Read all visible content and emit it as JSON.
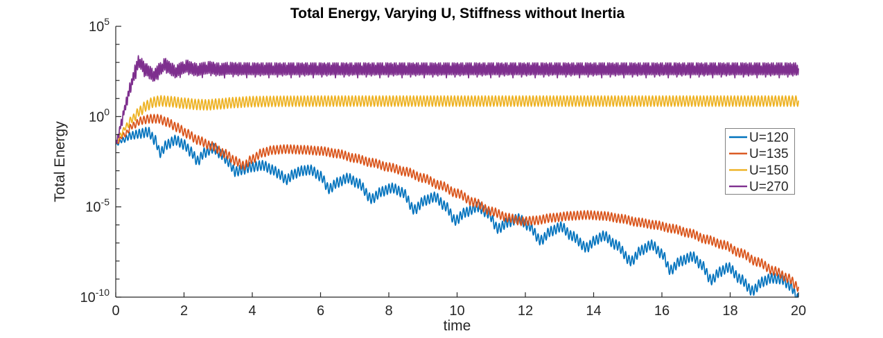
{
  "chart_data": {
    "type": "line",
    "title": "Total Energy, Varying U, Stiffness without Inertia",
    "xlabel": "time",
    "ylabel": "Total Energy",
    "x_range": [
      0,
      20
    ],
    "x_ticks": [
      0,
      2,
      4,
      6,
      8,
      10,
      12,
      14,
      16,
      18,
      20
    ],
    "y_scale": "log10",
    "y_range_exponents": [
      -10,
      5
    ],
    "y_labeled_exponents": [
      5,
      0,
      -5,
      -10
    ],
    "y_minor_ticks_every_decade": true,
    "grid": false,
    "legend_position": "right-middle",
    "colors": {
      "axis": "#262626",
      "text": "#262626",
      "title": "#000000",
      "legend_border": "#808080",
      "background": "#ffffff"
    },
    "series": [
      {
        "name": "U=120",
        "color": "#0072BD",
        "ripple_period": 0.095,
        "ripple_amp": [
          [
            0,
            0.08
          ],
          [
            0.4,
            0.2
          ],
          [
            0.8,
            0.27
          ],
          [
            20,
            0.27
          ]
        ],
        "log10_mid": [
          [
            0,
            -1.55
          ],
          [
            0.2,
            -1.3
          ],
          [
            0.45,
            -1.05
          ],
          [
            0.7,
            -0.95
          ],
          [
            0.95,
            -0.85
          ],
          [
            1.15,
            -1.3
          ],
          [
            1.3,
            -2.0
          ],
          [
            1.5,
            -1.55
          ],
          [
            1.75,
            -1.3
          ],
          [
            2.0,
            -1.55
          ],
          [
            2.2,
            -1.95
          ],
          [
            2.4,
            -2.45
          ],
          [
            2.6,
            -2.0
          ],
          [
            2.85,
            -1.75
          ],
          [
            3.1,
            -2.1
          ],
          [
            3.3,
            -2.5
          ],
          [
            3.5,
            -3.05
          ],
          [
            3.7,
            -2.95
          ],
          [
            3.95,
            -2.8
          ],
          [
            4.3,
            -2.7
          ],
          [
            4.6,
            -2.95
          ],
          [
            4.8,
            -3.2
          ],
          [
            5.0,
            -3.5
          ],
          [
            5.2,
            -3.2
          ],
          [
            5.45,
            -3.0
          ],
          [
            5.7,
            -2.95
          ],
          [
            6.0,
            -3.3
          ],
          [
            6.25,
            -4.0
          ],
          [
            6.5,
            -3.65
          ],
          [
            6.8,
            -3.4
          ],
          [
            7.1,
            -3.7
          ],
          [
            7.5,
            -4.55
          ],
          [
            7.8,
            -4.15
          ],
          [
            8.1,
            -3.95
          ],
          [
            8.4,
            -4.2
          ],
          [
            8.75,
            -5.15
          ],
          [
            9.05,
            -4.65
          ],
          [
            9.35,
            -4.45
          ],
          [
            9.65,
            -4.95
          ],
          [
            9.95,
            -5.75
          ],
          [
            10.25,
            -5.3
          ],
          [
            10.6,
            -5.0
          ],
          [
            10.9,
            -5.35
          ],
          [
            11.2,
            -6.2
          ],
          [
            11.5,
            -5.85
          ],
          [
            11.8,
            -5.65
          ],
          [
            12.1,
            -6.05
          ],
          [
            12.45,
            -6.85
          ],
          [
            12.75,
            -6.35
          ],
          [
            13.05,
            -6.1
          ],
          [
            13.35,
            -6.6
          ],
          [
            13.8,
            -7.25
          ],
          [
            14.05,
            -6.85
          ],
          [
            14.3,
            -6.6
          ],
          [
            14.65,
            -7.1
          ],
          [
            15.1,
            -8.0
          ],
          [
            15.4,
            -7.4
          ],
          [
            15.7,
            -7.1
          ],
          [
            16.0,
            -7.6
          ],
          [
            16.25,
            -8.5
          ],
          [
            16.55,
            -8.0
          ],
          [
            16.9,
            -7.75
          ],
          [
            17.15,
            -8.2
          ],
          [
            17.45,
            -9.05
          ],
          [
            17.7,
            -8.6
          ],
          [
            17.95,
            -8.35
          ],
          [
            18.3,
            -9.0
          ],
          [
            18.65,
            -9.65
          ],
          [
            18.95,
            -9.15
          ],
          [
            19.2,
            -8.95
          ],
          [
            19.5,
            -9.0
          ],
          [
            19.75,
            -9.35
          ],
          [
            20,
            -10.1
          ]
        ]
      },
      {
        "name": "U=135",
        "color": "#D95319",
        "ripple_period": 0.1,
        "ripple_amp": [
          [
            0,
            0.08
          ],
          [
            0.5,
            0.18
          ],
          [
            1.0,
            0.24
          ],
          [
            20,
            0.24
          ]
        ],
        "log10_mid": [
          [
            0,
            -1.5
          ],
          [
            0.25,
            -1.0
          ],
          [
            0.5,
            -0.5
          ],
          [
            0.75,
            -0.22
          ],
          [
            1.0,
            -0.12
          ],
          [
            1.25,
            -0.12
          ],
          [
            1.5,
            -0.3
          ],
          [
            1.8,
            -0.6
          ],
          [
            2.1,
            -0.95
          ],
          [
            2.4,
            -1.3
          ],
          [
            2.8,
            -1.62
          ],
          [
            3.2,
            -2.05
          ],
          [
            3.5,
            -2.45
          ],
          [
            3.75,
            -2.72
          ],
          [
            4.0,
            -2.35
          ],
          [
            4.3,
            -2.0
          ],
          [
            4.6,
            -1.85
          ],
          [
            5.0,
            -1.8
          ],
          [
            5.5,
            -1.84
          ],
          [
            6.0,
            -1.9
          ],
          [
            6.5,
            -2.05
          ],
          [
            7.0,
            -2.3
          ],
          [
            7.5,
            -2.55
          ],
          [
            8.0,
            -2.8
          ],
          [
            8.5,
            -3.05
          ],
          [
            9.0,
            -3.4
          ],
          [
            9.5,
            -3.8
          ],
          [
            10.0,
            -4.25
          ],
          [
            10.5,
            -4.75
          ],
          [
            11.0,
            -5.25
          ],
          [
            11.5,
            -5.6
          ],
          [
            11.9,
            -5.8
          ],
          [
            12.3,
            -5.75
          ],
          [
            12.8,
            -5.6
          ],
          [
            13.3,
            -5.5
          ],
          [
            13.8,
            -5.45
          ],
          [
            14.3,
            -5.5
          ],
          [
            14.8,
            -5.65
          ],
          [
            15.3,
            -5.85
          ],
          [
            15.8,
            -6.0
          ],
          [
            16.3,
            -6.2
          ],
          [
            16.8,
            -6.45
          ],
          [
            17.3,
            -6.8
          ],
          [
            17.8,
            -7.1
          ],
          [
            18.3,
            -7.55
          ],
          [
            18.8,
            -8.05
          ],
          [
            19.3,
            -8.55
          ],
          [
            19.7,
            -8.95
          ],
          [
            20,
            -9.45
          ]
        ]
      },
      {
        "name": "U=150",
        "color": "#EDB120",
        "ripple_period": 0.1,
        "ripple_amp": [
          [
            0,
            0.08
          ],
          [
            0.3,
            0.18
          ],
          [
            0.8,
            0.29
          ],
          [
            20,
            0.29
          ]
        ],
        "log10_mid": [
          [
            0,
            -1.45
          ],
          [
            0.15,
            -1.0
          ],
          [
            0.3,
            -0.55
          ],
          [
            0.5,
            -0.1
          ],
          [
            0.7,
            0.3
          ],
          [
            0.9,
            0.6
          ],
          [
            1.1,
            0.8
          ],
          [
            1.3,
            0.87
          ],
          [
            1.6,
            0.83
          ],
          [
            2.0,
            0.74
          ],
          [
            2.4,
            0.67
          ],
          [
            2.7,
            0.65
          ],
          [
            3.0,
            0.7
          ],
          [
            3.5,
            0.78
          ],
          [
            4.0,
            0.83
          ],
          [
            5.0,
            0.85
          ],
          [
            6.5,
            0.86
          ],
          [
            20,
            0.86
          ]
        ]
      },
      {
        "name": "U=270",
        "color": "#7E2F8E",
        "ripple_period": 0.05,
        "ripple_amp": [
          [
            0,
            0.15
          ],
          [
            0.3,
            0.25
          ],
          [
            0.6,
            0.33
          ],
          [
            20,
            0.33
          ]
        ],
        "teeth": {
          "period": 0.13,
          "depth": 0.55,
          "sharpness": 10
        },
        "log10_mid": [
          [
            0,
            -1.5
          ],
          [
            0.08,
            -1.0
          ],
          [
            0.16,
            -0.35
          ],
          [
            0.25,
            0.35
          ],
          [
            0.33,
            0.95
          ],
          [
            0.42,
            1.6
          ],
          [
            0.5,
            2.1
          ],
          [
            0.58,
            2.6
          ],
          [
            0.67,
            3.05
          ],
          [
            0.9,
            2.6
          ],
          [
            1.12,
            2.3
          ],
          [
            1.3,
            2.65
          ],
          [
            1.44,
            2.9
          ],
          [
            1.6,
            2.7
          ],
          [
            1.75,
            2.5
          ],
          [
            1.92,
            2.68
          ],
          [
            2.09,
            2.8
          ],
          [
            2.25,
            2.68
          ],
          [
            2.4,
            2.6
          ],
          [
            2.6,
            2.68
          ],
          [
            2.76,
            2.73
          ],
          [
            2.95,
            2.65
          ],
          [
            3.1,
            2.62
          ],
          [
            3.3,
            2.68
          ],
          [
            3.5,
            2.66
          ],
          [
            4.0,
            2.65
          ],
          [
            20,
            2.65
          ]
        ]
      }
    ],
    "legend_entries": [
      "U=120",
      "U=135",
      "U=150",
      "U=270"
    ]
  }
}
